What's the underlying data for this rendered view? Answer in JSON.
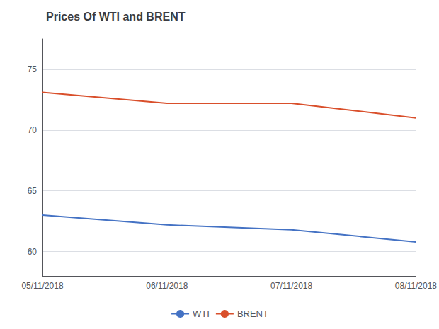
{
  "chart_data": {
    "type": "line",
    "title": "Prices Of WTI and BRENT",
    "categories": [
      "05/11/2018",
      "06/11/2018",
      "07/11/2018",
      "08/11/2018"
    ],
    "series": [
      {
        "name": "WTI",
        "color": "#4472C4",
        "values": [
          63.0,
          62.2,
          61.8,
          60.8
        ]
      },
      {
        "name": "BRENT",
        "color": "#D94F2B",
        "values": [
          73.1,
          72.2,
          72.2,
          71.0
        ]
      }
    ],
    "ylim": [
      58.0,
      77.5
    ],
    "yticks": [
      60,
      65,
      70,
      75
    ],
    "grid": true,
    "legend": "bottom"
  }
}
